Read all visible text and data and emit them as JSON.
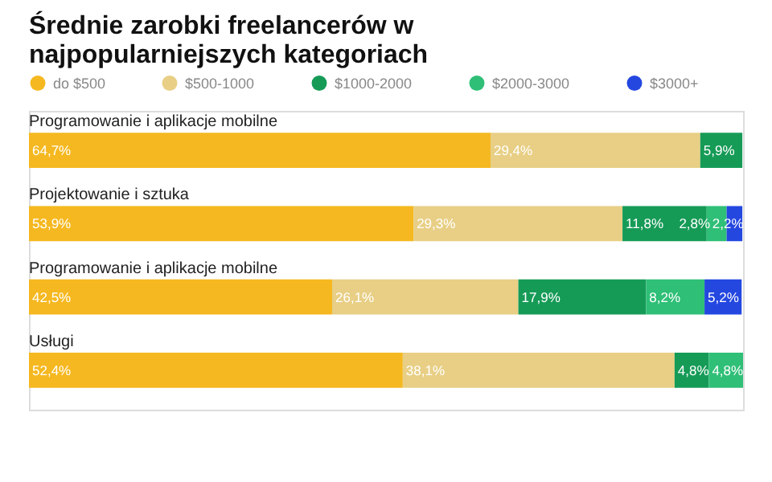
{
  "chart_data": {
    "type": "bar",
    "orientation": "horizontal",
    "stacked": true,
    "title": "Średnie zarobki freelancerów w najpopularniejszych kategoriach",
    "legend": "top left",
    "categories": [
      "Programowanie i aplikacje mobilne",
      "Projektowanie i sztuka",
      "Programowanie i aplikacje mobilne",
      "Usługi"
    ],
    "series": [
      {
        "name": "do $500",
        "color": "#f5b820",
        "values": [
          64.7,
          53.9,
          42.5,
          52.4
        ],
        "value_labels": [
          "64,7%",
          "53,9%",
          "42,5%",
          "52,4%"
        ]
      },
      {
        "name": "$500-1000",
        "color": "#e8cf85",
        "values": [
          29.4,
          29.3,
          26.1,
          38.1
        ],
        "value_labels": [
          "29,4%",
          "29,3%",
          "26,1%",
          "38,1%"
        ]
      },
      {
        "name": "$1000-2000",
        "color": "#169b57",
        "values": [
          5.9,
          11.8,
          17.9,
          4.8
        ],
        "value_labels": [
          "5,9%",
          "11,8%",
          "17,9%",
          "4,8%"
        ]
      },
      {
        "name": "$2000-3000",
        "color": "#2fbf77",
        "values": [
          null,
          2.8,
          8.2,
          4.8
        ],
        "value_labels": [
          null,
          "2,8%",
          "8,2%",
          "4,8%"
        ]
      },
      {
        "name": "$3000+",
        "color": "#2447e0",
        "values": [
          null,
          2.2,
          5.2,
          null
        ],
        "value_labels": [
          null,
          "2,2%",
          "5,2%",
          null
        ]
      }
    ]
  }
}
